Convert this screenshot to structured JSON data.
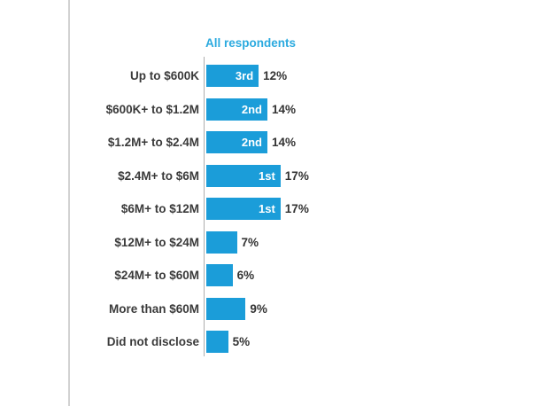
{
  "page": {
    "background": "#ffffff",
    "divider_color": "#d2d2d2"
  },
  "chart": {
    "colors": {
      "bar": "#1b9dd9",
      "title": "#2baadf",
      "label_text": "#3a3a3a",
      "value_text": "#333333",
      "rank_text": "#ffffff",
      "axis_line": "#aeaeae"
    }
  },
  "chart_data": {
    "type": "bar",
    "orientation": "horizontal",
    "title": "All respondents",
    "categories": [
      "Up to $600K",
      "$600K+ to $1.2M",
      "$1.2M+ to $2.4M",
      "$2.4M+ to $6M",
      "$6M+ to $12M",
      "$12M+ to $24M",
      "$24M+ to $60M",
      "More than $60M",
      "Did not disclose"
    ],
    "values": [
      12,
      14,
      14,
      17,
      17,
      7,
      6,
      9,
      5
    ],
    "display_values": [
      "12%",
      "14%",
      "14%",
      "17%",
      "17%",
      "7%",
      "6%",
      "9%",
      "5%"
    ],
    "ranks": [
      "3rd",
      "2nd",
      "2nd",
      "1st",
      "1st",
      "",
      "",
      "",
      ""
    ],
    "unit": "%",
    "xlim": [
      0,
      20
    ],
    "grid": false,
    "legend": false
  }
}
